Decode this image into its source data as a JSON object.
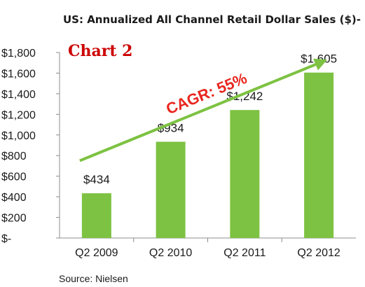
{
  "chart_data": {
    "type": "bar",
    "title": "US: Annualized All Channel Retail Dollar Sales ($)-",
    "categories": [
      "Q2 2009",
      "Q2 2010",
      "Q2 2011",
      "Q2 2012"
    ],
    "values": [
      434,
      934,
      1242,
      1605
    ],
    "data_labels": [
      "$434",
      "$934",
      "$1,242",
      "$1,605"
    ],
    "ylim": [
      0,
      1800
    ],
    "yticks": [
      0,
      200,
      400,
      600,
      800,
      1000,
      1200,
      1400,
      1600,
      1800
    ],
    "ytick_labels": [
      "$-",
      "$200",
      "$400",
      "$600",
      "$800",
      "$1,000",
      "$1,200",
      "$1,400",
      "$1,600",
      "$1,800"
    ],
    "grid": false,
    "bar_color": "#7DC242",
    "annotations": {
      "chart_label": "Chart 2",
      "chart_label_color": "#CC0000",
      "trend_label": "CAGR: 55%",
      "trend_label_color": "#E8261F",
      "trend_arrow_color": "#7DC242"
    },
    "source": "Source:  Nielsen"
  }
}
